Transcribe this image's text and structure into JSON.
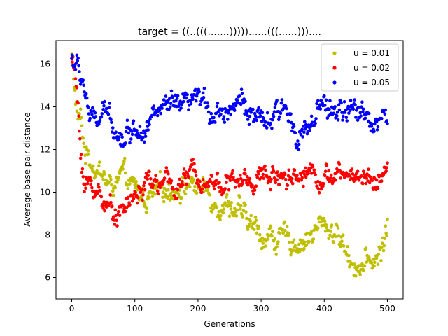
{
  "chart_data": {
    "type": "scatter",
    "title": "target = ((..(((.......)))))......(((......)))....",
    "xlabel": "Generations",
    "ylabel": "Average base pair distance",
    "xlim": [
      -25,
      525
    ],
    "ylim": [
      5.0,
      17.1
    ],
    "xticks": [
      0,
      100,
      200,
      300,
      400,
      500
    ],
    "yticks": [
      6,
      8,
      10,
      12,
      14,
      16
    ],
    "legend_position": "top-right",
    "grid": false,
    "series": [
      {
        "name": "u = 0.01",
        "color": "#bfbf00",
        "anchors": [
          [
            0,
            16.5
          ],
          [
            5,
            14.5
          ],
          [
            10,
            13.5
          ],
          [
            15,
            13.2
          ],
          [
            20,
            12.0
          ],
          [
            30,
            11.6
          ],
          [
            45,
            11.0
          ],
          [
            60,
            10.2
          ],
          [
            80,
            10.6
          ],
          [
            100,
            10.0
          ],
          [
            120,
            9.7
          ],
          [
            140,
            9.9
          ],
          [
            160,
            10.3
          ],
          [
            180,
            10.4
          ],
          [
            200,
            10.3
          ],
          [
            220,
            9.8
          ],
          [
            240,
            9.6
          ],
          [
            260,
            9.3
          ],
          [
            275,
            8.6
          ],
          [
            300,
            8.0
          ],
          [
            320,
            7.9
          ],
          [
            340,
            7.7
          ],
          [
            360,
            7.7
          ],
          [
            380,
            8.0
          ],
          [
            400,
            8.5
          ],
          [
            420,
            8.1
          ],
          [
            440,
            7.0
          ],
          [
            460,
            6.5
          ],
          [
            480,
            6.8
          ],
          [
            490,
            7.2
          ],
          [
            500,
            8.5
          ]
        ],
        "spread": 0.55
      },
      {
        "name": "u = 0.02",
        "color": "#ff0000",
        "anchors": [
          [
            0,
            16.3
          ],
          [
            5,
            15.6
          ],
          [
            10,
            13.8
          ],
          [
            15,
            11.8
          ],
          [
            20,
            10.3
          ],
          [
            30,
            10.3
          ],
          [
            45,
            10.0
          ],
          [
            60,
            9.2
          ],
          [
            80,
            9.2
          ],
          [
            100,
            9.8
          ],
          [
            120,
            10.4
          ],
          [
            140,
            10.4
          ],
          [
            160,
            10.2
          ],
          [
            180,
            10.6
          ],
          [
            200,
            11.0
          ],
          [
            220,
            10.6
          ],
          [
            240,
            10.5
          ],
          [
            260,
            10.4
          ],
          [
            280,
            10.6
          ],
          [
            300,
            10.7
          ],
          [
            320,
            10.8
          ],
          [
            340,
            11.0
          ],
          [
            360,
            10.8
          ],
          [
            380,
            11.1
          ],
          [
            400,
            10.7
          ],
          [
            420,
            10.7
          ],
          [
            440,
            10.8
          ],
          [
            460,
            10.8
          ],
          [
            480,
            10.6
          ],
          [
            500,
            11.0
          ]
        ],
        "spread": 0.5
      },
      {
        "name": "u = 0.05",
        "color": "#0000ff",
        "anchors": [
          [
            0,
            16.3
          ],
          [
            5,
            16.0
          ],
          [
            10,
            15.8
          ],
          [
            15,
            15.3
          ],
          [
            20,
            15.0
          ],
          [
            30,
            13.2
          ],
          [
            45,
            13.4
          ],
          [
            60,
            13.6
          ],
          [
            80,
            12.6
          ],
          [
            100,
            13.1
          ],
          [
            120,
            13.4
          ],
          [
            140,
            13.8
          ],
          [
            160,
            13.9
          ],
          [
            180,
            13.8
          ],
          [
            200,
            14.2
          ],
          [
            220,
            13.9
          ],
          [
            240,
            13.9
          ],
          [
            260,
            14.3
          ],
          [
            280,
            14.0
          ],
          [
            300,
            13.0
          ],
          [
            320,
            13.4
          ],
          [
            340,
            13.8
          ],
          [
            360,
            12.9
          ],
          [
            380,
            13.0
          ],
          [
            400,
            14.0
          ],
          [
            420,
            13.8
          ],
          [
            440,
            13.6
          ],
          [
            460,
            13.8
          ],
          [
            480,
            13.4
          ],
          [
            500,
            13.5
          ]
        ],
        "spread": 0.55
      }
    ]
  }
}
